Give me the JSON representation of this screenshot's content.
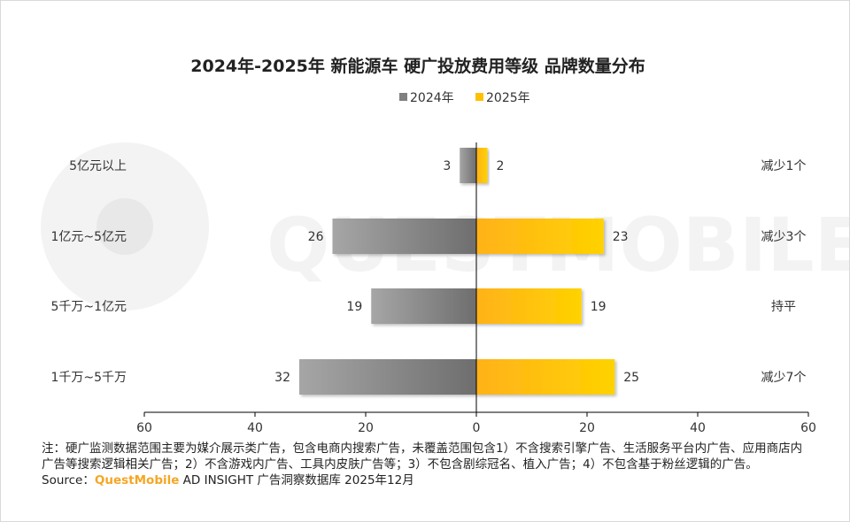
{
  "chart_data": {
    "type": "bar",
    "title": "2024年-2025年 新能源车 硬广投放费用等级 品牌数量分布",
    "categories": [
      "5亿元以上",
      "1亿元~5亿元",
      "5千万~1亿元",
      "1千万~5千万"
    ],
    "series": [
      {
        "name": "2024年",
        "values": [
          3,
          26,
          19,
          32
        ],
        "color": "#808080"
      },
      {
        "name": "2025年",
        "values": [
          2,
          23,
          19,
          25
        ],
        "color": "#ffc000"
      }
    ],
    "changes": [
      "减少1个",
      "减少3个",
      "持平",
      "减少7个"
    ],
    "x_ticks": [
      "60",
      "40",
      "20",
      "0",
      "20",
      "40",
      "60"
    ],
    "xlim": [
      -60,
      60
    ],
    "orientation": "horizontal-diverging",
    "legend": "top-center",
    "grid": false
  },
  "footnote": {
    "text": "注：硬广监测数据范围主要为媒介展示类广告，包含电商内搜索广告，未覆盖范围包含1）不含搜索引擎广告、生活服务平台内广告、应用商店内广告等搜索逻辑相关广告；2）不含游戏内广告、工具内皮肤广告等；3）不包含剧综冠名、植入广告；4）不包含基于粉丝逻辑的广告。",
    "source_prefix": "Source：",
    "source_brand": "QuestMobile",
    "source_suffix": " AD INSIGHT 广告洞察数据库 2025年12月"
  },
  "watermark": "QUESTMOBILE"
}
